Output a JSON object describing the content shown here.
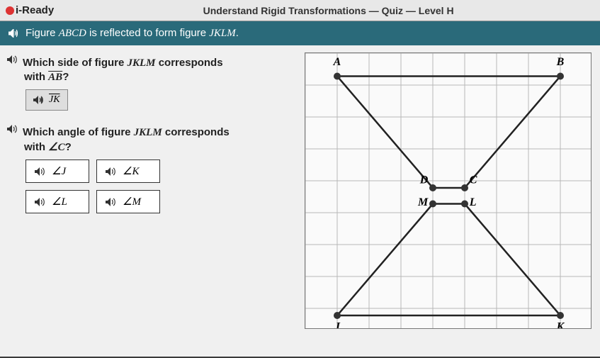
{
  "header": {
    "logo_text": "i-Ready",
    "title": "Understand Rigid Transformations — Quiz — Level H"
  },
  "subheader": {
    "prefix": "Figure ",
    "fig1": "ABCD",
    "mid": " is reflected to form figure ",
    "fig2": "JKLM",
    "suffix": "."
  },
  "q1": {
    "line1_prefix": "Which side of figure ",
    "line1_fig": "JKLM",
    "line1_suffix": " corresponds",
    "line2_prefix": "with ",
    "line2_seg": "AB",
    "line2_suffix": "?",
    "answer": "JK"
  },
  "q2": {
    "line1_prefix": "Which angle of figure ",
    "line1_fig": "JKLM",
    "line1_suffix": " corresponds",
    "line2_prefix": "with ",
    "line2_angle": "∠C",
    "line2_suffix": "?",
    "options": [
      "∠J",
      "∠K",
      "∠L",
      "∠M"
    ]
  },
  "diagram": {
    "grid": {
      "cols": 9,
      "rows": 8,
      "cell": 45
    },
    "colors": {
      "grid_line": "#b8b8b8",
      "shape_stroke": "#222",
      "point_fill": "#333",
      "label_color": "#000"
    },
    "stroke_width": 2.5,
    "point_radius": 5,
    "label_fontsize": 16,
    "figures": {
      "ABCD": {
        "A": {
          "gx": 1,
          "gy": 0.5
        },
        "B": {
          "gx": 8,
          "gy": 0.5
        },
        "C": {
          "gx": 5,
          "gy": 4
        },
        "D": {
          "gx": 4,
          "gy": 4
        }
      },
      "JKLM": {
        "J": {
          "gx": 1,
          "gy": 8
        },
        "K": {
          "gx": 8,
          "gy": 8
        },
        "L": {
          "gx": 5,
          "gy": 4.5
        },
        "M": {
          "gx": 4,
          "gy": 4.5
        }
      }
    },
    "labels": [
      {
        "t": "A",
        "gx": 1,
        "gy": 0.15,
        "anchor": "middle"
      },
      {
        "t": "B",
        "gx": 8,
        "gy": 0.15,
        "anchor": "middle"
      },
      {
        "t": "C",
        "gx": 5.15,
        "gy": 3.85,
        "anchor": "start"
      },
      {
        "t": "D",
        "gx": 3.85,
        "gy": 3.85,
        "anchor": "end"
      },
      {
        "t": "M",
        "gx": 3.85,
        "gy": 4.55,
        "anchor": "end"
      },
      {
        "t": "L",
        "gx": 5.15,
        "gy": 4.55,
        "anchor": "start"
      },
      {
        "t": "J",
        "gx": 1,
        "gy": 8.45,
        "anchor": "middle"
      },
      {
        "t": "K",
        "gx": 8,
        "gy": 8.45,
        "anchor": "middle"
      }
    ]
  }
}
